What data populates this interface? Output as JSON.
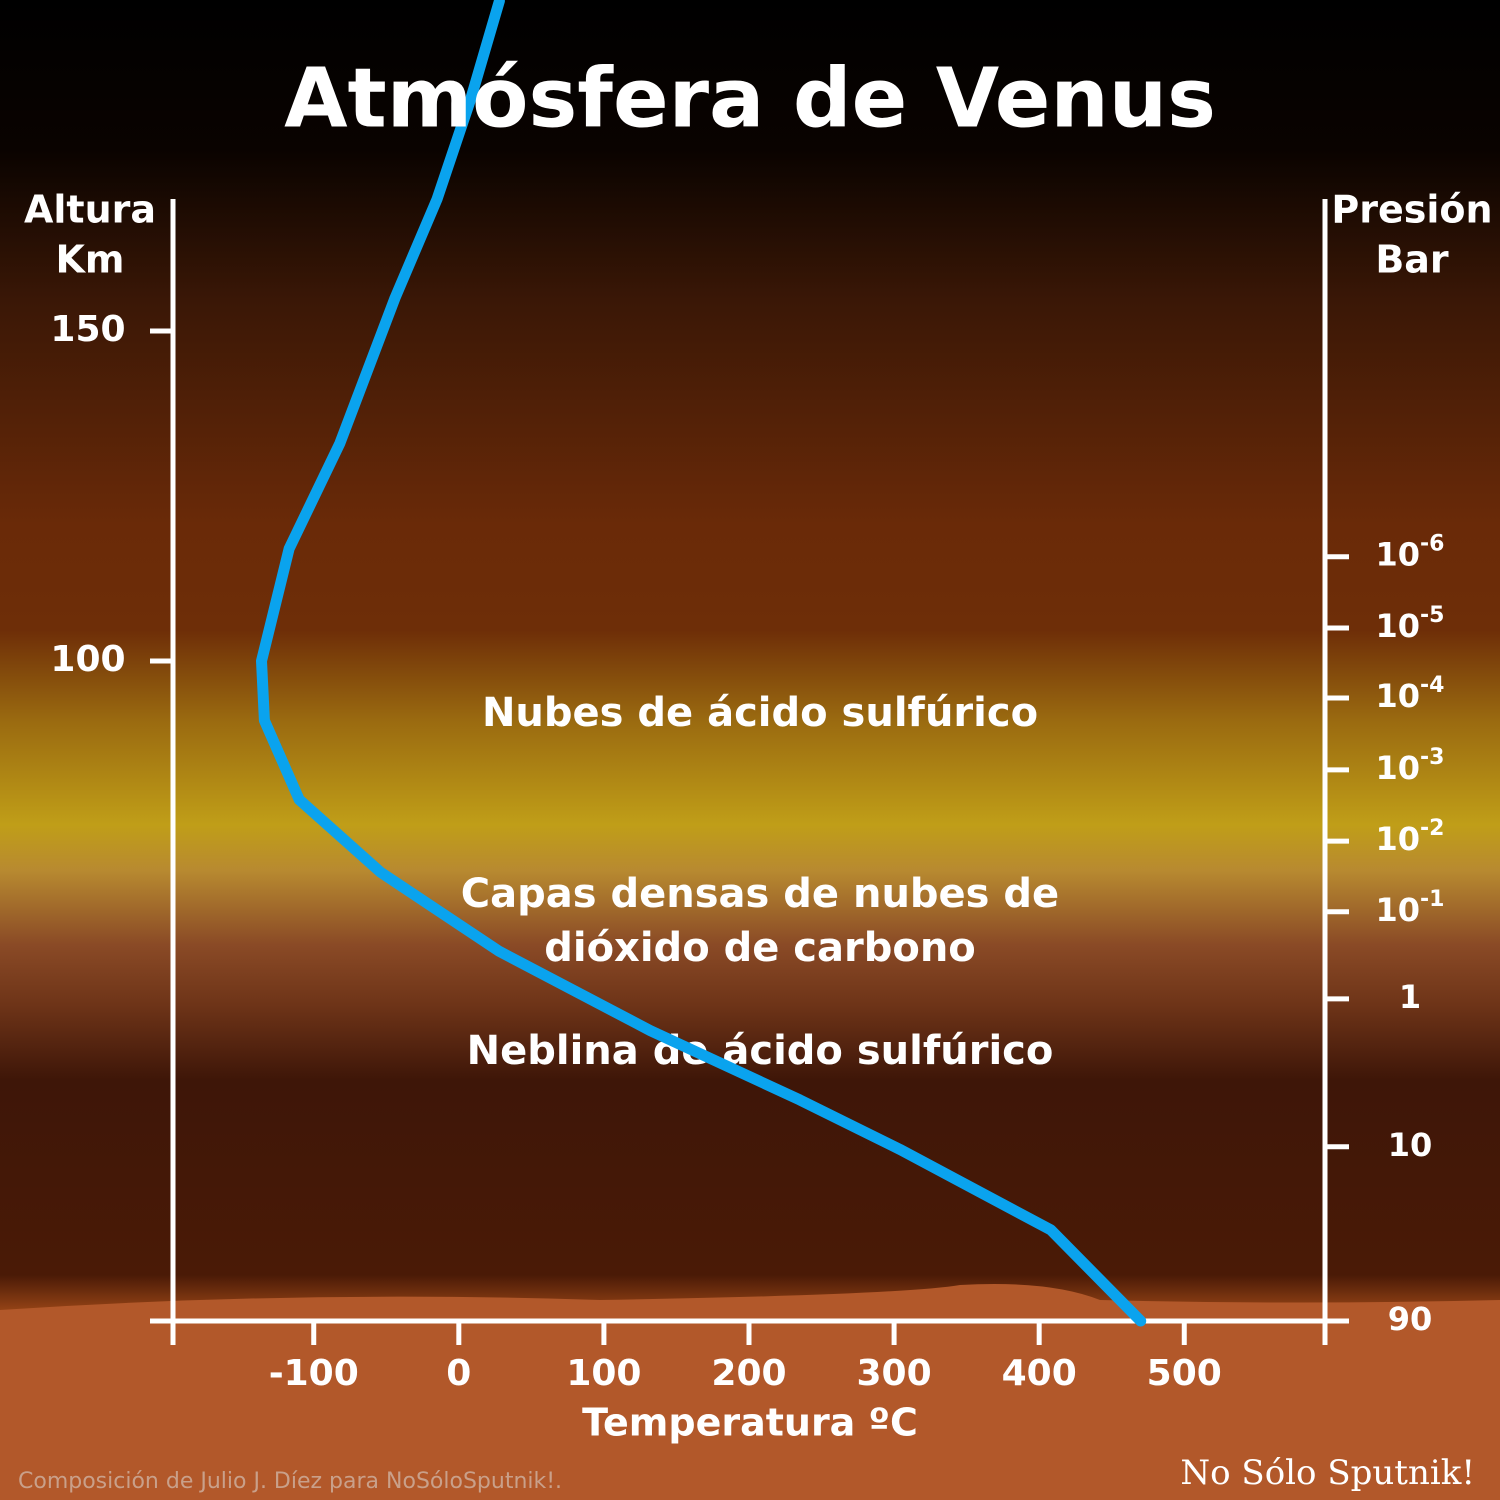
{
  "chart_data": {
    "type": "line",
    "title": "Atmósfera de Venus",
    "y_label_lines": [
      "Altura",
      "Km"
    ],
    "y2_label_lines": [
      "Presión",
      "Bar"
    ],
    "x_label": "Temperatura ºC",
    "x": [
      470,
      408,
      304,
      235,
      132,
      28,
      -54,
      -110,
      -134,
      -136,
      -117,
      -82,
      -44,
      -15,
      8,
      28
    ],
    "values": [
      0,
      13.8,
      26,
      33.5,
      44,
      56,
      68,
      79,
      91,
      100,
      117,
      133,
      155,
      170,
      185,
      200
    ],
    "color": "#0aa3ee",
    "xlim": [
      -197,
      597
    ],
    "xticks": [
      -100,
      0,
      100,
      200,
      300,
      400,
      500
    ],
    "ylim": [
      0,
      170
    ],
    "yticks": [
      100,
      150
    ],
    "y2ticks": [
      {
        "label": "10",
        "sup": "-6",
        "altitude": 115.8
      },
      {
        "label": "10",
        "sup": "-5",
        "altitude": 105
      },
      {
        "label": "10",
        "sup": "-4",
        "altitude": 94.4
      },
      {
        "label": "10",
        "sup": "-3",
        "altitude": 83.5
      },
      {
        "label": "10",
        "sup": "-2",
        "altitude": 72.7
      },
      {
        "label": "10",
        "sup": "-1",
        "altitude": 62
      },
      {
        "label": "1",
        "altitude": 48.8
      },
      {
        "label": "10",
        "altitude": 26.4
      },
      {
        "label": "90",
        "altitude": 0
      }
    ],
    "annotations": [
      {
        "text": "Nubes de ácido sulfúrico",
        "altitude": 91.8
      },
      {
        "text": "Capas densas de nubes de",
        "altitude": 64.4
      },
      {
        "text": "dióxido de carbono",
        "altitude": 56.2
      },
      {
        "text": "Neblina de ácido sulfúrico",
        "altitude": 40.6
      }
    ],
    "credit": "Composición de Julio J. Díez para NoSóloSputnik!.",
    "logo": "No Sólo Sputnik!"
  }
}
